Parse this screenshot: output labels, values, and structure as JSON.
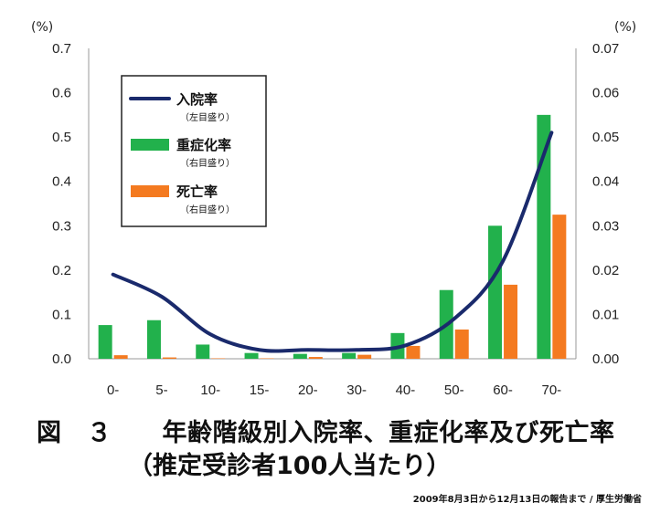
{
  "chart_data": {
    "type": "bar",
    "categories": [
      "0-",
      "5-",
      "10-",
      "15-",
      "20-",
      "30-",
      "40-",
      "50-",
      "60-",
      "70-"
    ],
    "left_axis": {
      "unit": "(%)",
      "ticks": [
        "0.0",
        "0.1",
        "0.2",
        "0.3",
        "0.4",
        "0.5",
        "0.6",
        "0.7"
      ],
      "ylim": [
        0,
        0.7
      ]
    },
    "right_axis": {
      "unit": "(%)",
      "ticks": [
        "0.00",
        "0.01",
        "0.02",
        "0.03",
        "0.04",
        "0.05",
        "0.06",
        "0.07"
      ],
      "ylim": [
        0,
        0.07
      ]
    },
    "series": [
      {
        "name": "入院率",
        "sub": "（左目盛り）",
        "type": "line",
        "axis": "left",
        "color": "#1a2a6c",
        "values": [
          0.19,
          0.14,
          0.055,
          0.02,
          0.02,
          0.02,
          0.03,
          0.09,
          0.22,
          0.51
        ]
      },
      {
        "name": "重症化率",
        "sub": "（右目盛り）",
        "type": "bar",
        "axis": "right",
        "color": "#22b14c",
        "values": [
          0.0076,
          0.0087,
          0.0032,
          0.0013,
          0.0011,
          0.0013,
          0.0058,
          0.0155,
          0.03,
          0.055
        ]
      },
      {
        "name": "死亡率",
        "sub": "（右目盛り）",
        "type": "bar",
        "axis": "right",
        "color": "#f47a20",
        "values": [
          0.0008,
          0.0003,
          0.0001,
          0.0001,
          0.0004,
          0.0009,
          0.0029,
          0.0066,
          0.0167,
          0.0325
        ]
      }
    ],
    "grid": false,
    "legend": "top-left"
  },
  "caption": {
    "line1": "図　３　　年齢階級別入院率、重症化率及び死亡率",
    "line2": "（推定受診者100人当たり）"
  },
  "source": "2009年8月3日から12月13日の報告まで / 厚生労働省"
}
